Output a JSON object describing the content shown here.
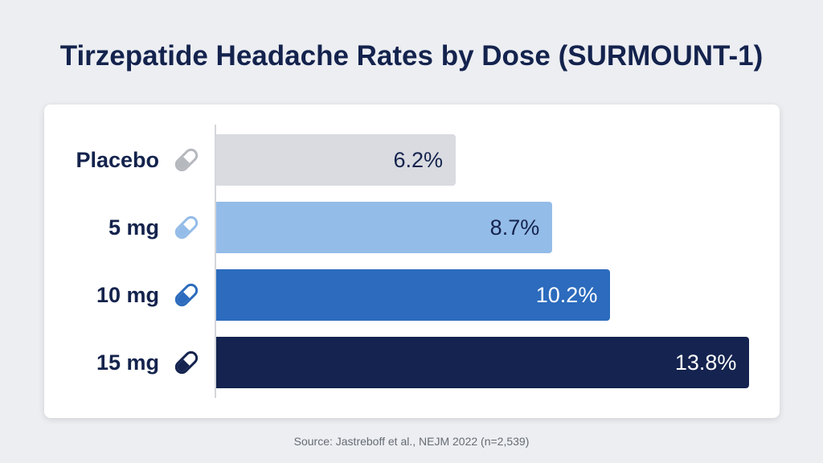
{
  "chart_data": {
    "type": "bar",
    "orientation": "horizontal",
    "title": "Tirzepatide Headache Rates by Dose (SURMOUNT-1)",
    "categories": [
      "Placebo",
      "5 mg",
      "10 mg",
      "15 mg"
    ],
    "values": [
      6.2,
      8.7,
      10.2,
      13.8
    ],
    "value_labels": [
      "6.2%",
      "8.7%",
      "10.2%",
      "13.8%"
    ],
    "unit": "%",
    "colors": [
      "#d9dbe0",
      "#94bce8",
      "#2c6bbd",
      "#14234f"
    ],
    "label_colors": [
      "#14234d",
      "#14234d",
      "#ffffff",
      "#ffffff"
    ],
    "icon": "pill-icon",
    "xlim": [
      0,
      14
    ],
    "grid": false,
    "source": "Source: Jastreboff et al., NEJM 2022 (n=2,539)"
  }
}
